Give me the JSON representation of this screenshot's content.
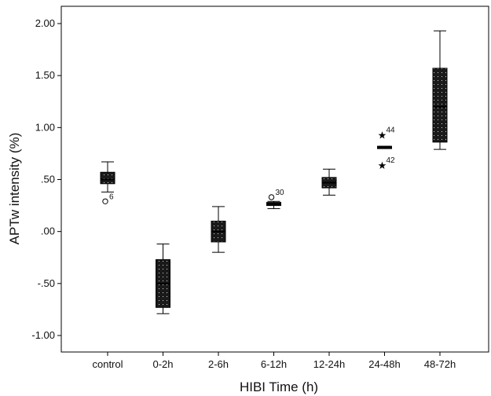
{
  "chart_data": {
    "type": "boxplot",
    "xlabel": "HIBI Time (h)",
    "ylabel": "APTw intensity (%)",
    "ylim": [
      -1.1,
      2.1
    ],
    "yticks": [
      2.0,
      1.5,
      1.0,
      0.5,
      0.0,
      -0.5,
      -1.0
    ],
    "ytick_labels": [
      "2.00",
      "1.50",
      "1.00",
      ".50",
      ".00",
      "-.50",
      "-1.00"
    ],
    "grid": false,
    "box_fill": "#1a1a1a",
    "box_pattern_color": "#e0e0e0",
    "categories": [
      "control",
      "0-2h",
      "2-6h",
      "6-12h",
      "12-24h",
      "24-48h",
      "48-72h"
    ],
    "boxes": [
      {
        "category": "control",
        "whisker_low": 0.38,
        "q1": 0.46,
        "median": 0.5,
        "q3": 0.57,
        "whisker_high": 0.67
      },
      {
        "category": "0-2h",
        "whisker_low": -0.79,
        "q1": -0.73,
        "median": -0.5,
        "q3": -0.27,
        "whisker_high": -0.12
      },
      {
        "category": "2-6h",
        "whisker_low": -0.2,
        "q1": -0.1,
        "median": 0.0,
        "q3": 0.1,
        "whisker_high": 0.24
      },
      {
        "category": "6-12h",
        "whisker_low": 0.22,
        "q1": 0.25,
        "median": 0.265,
        "q3": 0.28,
        "whisker_high": 0.29
      },
      {
        "category": "12-24h",
        "whisker_low": 0.35,
        "q1": 0.42,
        "median": 0.47,
        "q3": 0.52,
        "whisker_high": 0.6
      },
      {
        "category": "24-48h",
        "whisker_low": 0.8,
        "q1": 0.8,
        "median": 0.81,
        "q3": 0.82,
        "whisker_high": 0.82
      },
      {
        "category": "48-72h",
        "whisker_low": 0.79,
        "q1": 0.86,
        "median": 1.2,
        "q3": 1.57,
        "whisker_high": 1.93
      }
    ],
    "outliers": [
      {
        "category": "control",
        "y": 0.29,
        "marker": "circle",
        "label": "6"
      },
      {
        "category": "6-12h",
        "y": 0.33,
        "marker": "circle",
        "label": "30"
      },
      {
        "category": "24-48h",
        "y": 0.93,
        "marker": "star",
        "label": "44"
      },
      {
        "category": "24-48h",
        "y": 0.64,
        "marker": "star",
        "label": "42"
      }
    ]
  }
}
